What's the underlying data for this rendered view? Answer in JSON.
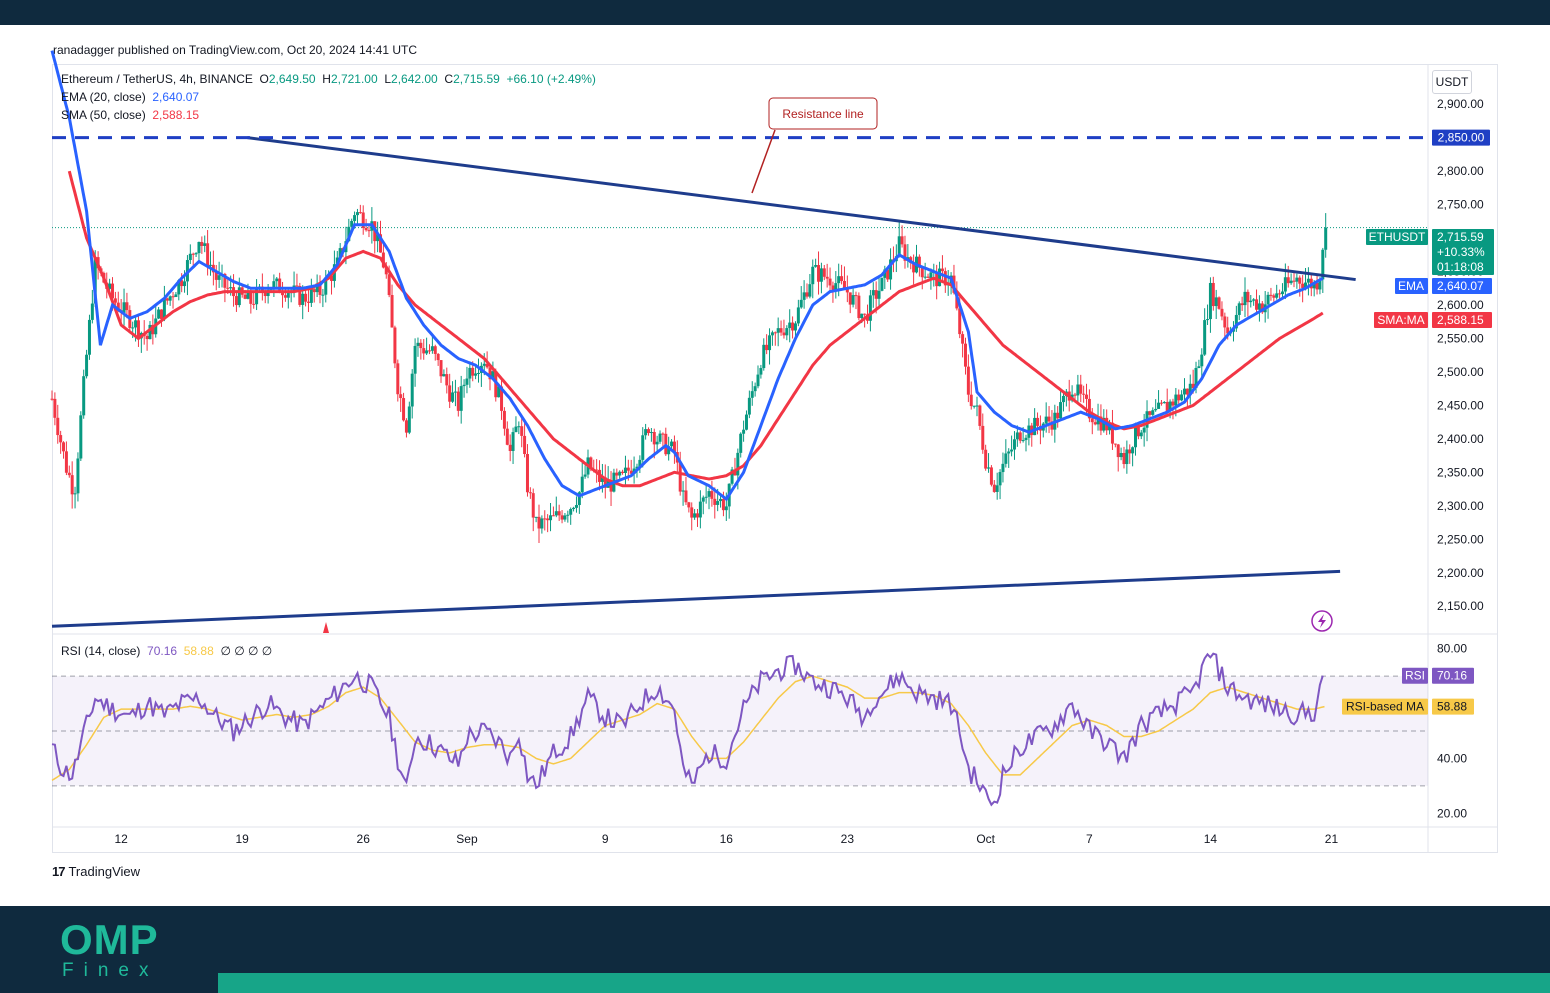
{
  "header": {
    "published_by": "ranadagger published on TradingView.com, Oct 20, 2024 14:41 UTC"
  },
  "symbol": {
    "name": "Ethereum / TetherUS, 4h, BINANCE",
    "open_label": "O",
    "open": "2,649.50",
    "high_label": "H",
    "high": "2,721.00",
    "low_label": "L",
    "low": "2,642.00",
    "close_label": "C",
    "close": "2,715.59",
    "change": "+66.10 (+2.49%)"
  },
  "indicators": {
    "ema_label": "EMA (20, close)",
    "ema_value": "2,640.07",
    "sma_label": "SMA (50, close)",
    "sma_value": "2,588.15",
    "rsi_label": "RSI (14, close)",
    "rsi_value": "70.16",
    "rsi_ma_value": "58.88",
    "rsi_extra": "∅ ∅ ∅ ∅"
  },
  "currency": "USDT",
  "annotation": "Resistance line",
  "price_tags": {
    "level": "2,850.00",
    "ticker": "ETHUSDT",
    "price": "2,715.59",
    "pct": "+10.33%",
    "countdown": "01:18:08",
    "ema_tag": "EMA",
    "ema": "2,640.07",
    "sma_tag": "SMA:MA",
    "sma": "2,588.15",
    "rsi_tag": "RSI",
    "rsi": "70.16",
    "rsi_ma_tag": "RSI-based MA",
    "rsi_ma": "58.88"
  },
  "branding": {
    "tradingview": "TradingView",
    "tv_mark": "17",
    "omp": "OMP",
    "finex": "Finex"
  },
  "colors": {
    "up": "#089981",
    "down": "#f23645",
    "ema": "#2962ff",
    "sma": "#f23645",
    "trendline": "#1e3c8c",
    "rsi": "#7e57c2",
    "rsi_ma": "#f7c948",
    "dark": "#0f2a3e",
    "teal": "#1fb99a"
  },
  "chart_data": {
    "type": "candlestick",
    "price_axis": {
      "ticks": [
        "2,150.00",
        "2,200.00",
        "2,250.00",
        "2,300.00",
        "2,350.00",
        "2,400.00",
        "2,450.00",
        "2,500.00",
        "2,550.00",
        "2,600.00",
        "2,650.00",
        "2,700.00",
        "2,750.00",
        "2,800.00",
        "2,850.00",
        "2,900.00"
      ],
      "range": [
        2110,
        2960
      ]
    },
    "rsi_axis": {
      "ticks": [
        "20.00",
        "40.00",
        "80.00"
      ],
      "range": [
        15,
        85
      ],
      "bands": [
        30,
        50,
        70
      ]
    },
    "time_axis": {
      "labels": [
        "12",
        "19",
        "26",
        "Sep",
        "9",
        "16",
        "23",
        "Oct",
        "7",
        "14",
        "21"
      ],
      "day_index": [
        8,
        15,
        22,
        28,
        36,
        43,
        50,
        58,
        64,
        71,
        78
      ]
    },
    "start_day": 4,
    "days": 75,
    "levels": {
      "horizontal_resistance": 2850,
      "last_price": 2715.59
    },
    "resistance_line": {
      "from": {
        "day": 15.3,
        "price": 2850
      },
      "to": {
        "day": 79.4,
        "price": 2638
      }
    },
    "support_line": {
      "from": {
        "day": 4,
        "price": 2120
      },
      "to": {
        "day": 78.5,
        "price": 2202
      }
    },
    "price_anchors": [
      [
        4,
        2460
      ],
      [
        4.8,
        2360
      ],
      [
        5.3,
        2320
      ],
      [
        5.8,
        2470
      ],
      [
        6.5,
        2660
      ],
      [
        7.5,
        2610
      ],
      [
        8.5,
        2580
      ],
      [
        9.5,
        2550
      ],
      [
        10.5,
        2600
      ],
      [
        11.5,
        2640
      ],
      [
        12.5,
        2700
      ],
      [
        13.5,
        2640
      ],
      [
        14.5,
        2615
      ],
      [
        15.5,
        2605
      ],
      [
        16.5,
        2630
      ],
      [
        17.5,
        2625
      ],
      [
        18.5,
        2610
      ],
      [
        19.5,
        2620
      ],
      [
        20.5,
        2660
      ],
      [
        21.5,
        2740
      ],
      [
        22.5,
        2720
      ],
      [
        23.3,
        2650
      ],
      [
        24,
        2480
      ],
      [
        24.5,
        2420
      ],
      [
        25,
        2540
      ],
      [
        26,
        2530
      ],
      [
        27,
        2470
      ],
      [
        27.5,
        2450
      ],
      [
        28,
        2500
      ],
      [
        29,
        2520
      ],
      [
        29.5,
        2490
      ],
      [
        30,
        2450
      ],
      [
        30.5,
        2380
      ],
      [
        31,
        2430
      ],
      [
        31.5,
        2330
      ],
      [
        32,
        2270
      ],
      [
        33,
        2280
      ],
      [
        34,
        2300
      ],
      [
        34.5,
        2320
      ],
      [
        35,
        2360
      ],
      [
        36,
        2330
      ],
      [
        37,
        2340
      ],
      [
        38,
        2380
      ],
      [
        38.5,
        2420
      ],
      [
        39,
        2400
      ],
      [
        40,
        2380
      ],
      [
        40.5,
        2310
      ],
      [
        41,
        2280
      ],
      [
        42,
        2320
      ],
      [
        43,
        2300
      ],
      [
        44,
        2420
      ],
      [
        45,
        2520
      ],
      [
        46,
        2560
      ],
      [
        47,
        2580
      ],
      [
        48,
        2650
      ],
      [
        49,
        2640
      ],
      [
        50,
        2620
      ],
      [
        51,
        2580
      ],
      [
        51.5,
        2610
      ],
      [
        52,
        2630
      ],
      [
        53,
        2690
      ],
      [
        53.5,
        2670
      ],
      [
        54,
        2660
      ],
      [
        55,
        2640
      ],
      [
        56,
        2640
      ],
      [
        56.5,
        2560
      ],
      [
        57,
        2470
      ],
      [
        57.5,
        2440
      ],
      [
        58,
        2370
      ],
      [
        58.5,
        2330
      ],
      [
        59,
        2360
      ],
      [
        60,
        2410
      ],
      [
        61,
        2420
      ],
      [
        62,
        2430
      ],
      [
        63,
        2480
      ],
      [
        64,
        2440
      ],
      [
        65,
        2420
      ],
      [
        66,
        2370
      ],
      [
        66.5,
        2400
      ],
      [
        67,
        2420
      ],
      [
        68,
        2440
      ],
      [
        69,
        2460
      ],
      [
        70,
        2480
      ],
      [
        70.5,
        2540
      ],
      [
        71,
        2620
      ],
      [
        71.5,
        2600
      ],
      [
        72,
        2560
      ],
      [
        73,
        2610
      ],
      [
        74,
        2600
      ],
      [
        75,
        2620
      ],
      [
        76,
        2640
      ],
      [
        77,
        2630
      ],
      [
        77.3,
        2640
      ],
      [
        77.6,
        2716
      ]
    ],
    "ema_anchors": [
      [
        4,
        2980
      ],
      [
        5,
        2880
      ],
      [
        6,
        2740
      ],
      [
        6.8,
        2540
      ],
      [
        7.5,
        2600
      ],
      [
        8.5,
        2580
      ],
      [
        9.5,
        2590
      ],
      [
        10.5,
        2610
      ],
      [
        11.5,
        2640
      ],
      [
        12.5,
        2665
      ],
      [
        13.5,
        2650
      ],
      [
        14.5,
        2635
      ],
      [
        15.5,
        2625
      ],
      [
        16.5,
        2625
      ],
      [
        17.5,
        2625
      ],
      [
        18.5,
        2625
      ],
      [
        19.5,
        2630
      ],
      [
        20.5,
        2660
      ],
      [
        21.5,
        2720
      ],
      [
        22.5,
        2720
      ],
      [
        23.5,
        2680
      ],
      [
        24.5,
        2610
      ],
      [
        25.5,
        2570
      ],
      [
        26.5,
        2540
      ],
      [
        27.5,
        2520
      ],
      [
        28.5,
        2510
      ],
      [
        29.5,
        2490
      ],
      [
        30.5,
        2460
      ],
      [
        31.5,
        2420
      ],
      [
        32.5,
        2370
      ],
      [
        33.5,
        2330
      ],
      [
        34.5,
        2315
      ],
      [
        35.5,
        2325
      ],
      [
        36.5,
        2335
      ],
      [
        37.5,
        2345
      ],
      [
        38.5,
        2370
      ],
      [
        39.5,
        2390
      ],
      [
        40,
        2380
      ],
      [
        40.8,
        2345
      ],
      [
        42,
        2330
      ],
      [
        43,
        2310
      ],
      [
        44,
        2350
      ],
      [
        45,
        2420
      ],
      [
        46,
        2490
      ],
      [
        47,
        2550
      ],
      [
        48,
        2600
      ],
      [
        49,
        2620
      ],
      [
        50,
        2625
      ],
      [
        51,
        2630
      ],
      [
        52,
        2645
      ],
      [
        53,
        2675
      ],
      [
        54,
        2660
      ],
      [
        55,
        2650
      ],
      [
        56,
        2640
      ],
      [
        57,
        2560
      ],
      [
        57.5,
        2470
      ],
      [
        58.5,
        2440
      ],
      [
        59.5,
        2420
      ],
      [
        60.5,
        2410
      ],
      [
        61.5,
        2420
      ],
      [
        62.5,
        2430
      ],
      [
        63.5,
        2440
      ],
      [
        64.5,
        2430
      ],
      [
        65.5,
        2415
      ],
      [
        66.5,
        2420
      ],
      [
        67.5,
        2430
      ],
      [
        68.5,
        2440
      ],
      [
        69.5,
        2455
      ],
      [
        70.5,
        2490
      ],
      [
        71.5,
        2540
      ],
      [
        72.5,
        2570
      ],
      [
        73.5,
        2585
      ],
      [
        74.5,
        2600
      ],
      [
        75.5,
        2615
      ],
      [
        76.5,
        2625
      ],
      [
        77.5,
        2640
      ]
    ],
    "sma_anchors": [
      [
        5,
        2800
      ],
      [
        6,
        2700
      ],
      [
        7,
        2640
      ],
      [
        8,
        2570
      ],
      [
        9,
        2550
      ],
      [
        10,
        2570
      ],
      [
        11,
        2590
      ],
      [
        12,
        2605
      ],
      [
        13,
        2615
      ],
      [
        14,
        2620
      ],
      [
        15,
        2620
      ],
      [
        16,
        2620
      ],
      [
        17,
        2620
      ],
      [
        18,
        2620
      ],
      [
        19,
        2625
      ],
      [
        20,
        2640
      ],
      [
        21,
        2670
      ],
      [
        22,
        2680
      ],
      [
        23,
        2670
      ],
      [
        24,
        2630
      ],
      [
        25,
        2600
      ],
      [
        26,
        2580
      ],
      [
        27,
        2560
      ],
      [
        28,
        2540
      ],
      [
        29,
        2520
      ],
      [
        30,
        2490
      ],
      [
        31,
        2460
      ],
      [
        32,
        2430
      ],
      [
        33,
        2400
      ],
      [
        34,
        2380
      ],
      [
        35,
        2360
      ],
      [
        36,
        2340
      ],
      [
        37,
        2330
      ],
      [
        38,
        2330
      ],
      [
        39,
        2340
      ],
      [
        40,
        2350
      ],
      [
        41,
        2345
      ],
      [
        42,
        2340
      ],
      [
        43,
        2345
      ],
      [
        44,
        2360
      ],
      [
        45,
        2390
      ],
      [
        46,
        2430
      ],
      [
        47,
        2470
      ],
      [
        48,
        2510
      ],
      [
        49,
        2540
      ],
      [
        50,
        2560
      ],
      [
        51,
        2580
      ],
      [
        52,
        2600
      ],
      [
        53,
        2620
      ],
      [
        54,
        2630
      ],
      [
        55,
        2640
      ],
      [
        56,
        2630
      ],
      [
        57,
        2600
      ],
      [
        58,
        2570
      ],
      [
        59,
        2540
      ],
      [
        60,
        2520
      ],
      [
        61,
        2500
      ],
      [
        62,
        2480
      ],
      [
        63,
        2460
      ],
      [
        64,
        2440
      ],
      [
        65,
        2425
      ],
      [
        66,
        2415
      ],
      [
        67,
        2420
      ],
      [
        68,
        2430
      ],
      [
        69,
        2440
      ],
      [
        70,
        2450
      ],
      [
        71,
        2470
      ],
      [
        72,
        2490
      ],
      [
        73,
        2510
      ],
      [
        74,
        2530
      ],
      [
        75,
        2550
      ],
      [
        76,
        2565
      ],
      [
        77,
        2580
      ],
      [
        77.5,
        2588
      ]
    ],
    "rsi_anchors": [
      [
        4,
        44
      ],
      [
        4.6,
        36
      ],
      [
        5.2,
        34
      ],
      [
        5.8,
        48
      ],
      [
        6.5,
        62
      ],
      [
        7.5,
        58
      ],
      [
        8.5,
        55
      ],
      [
        9.5,
        60
      ],
      [
        10.5,
        56
      ],
      [
        11.5,
        60
      ],
      [
        12.5,
        62
      ],
      [
        13.5,
        55
      ],
      [
        14.5,
        50
      ],
      [
        15.5,
        55
      ],
      [
        16.5,
        60
      ],
      [
        17.5,
        55
      ],
      [
        18.5,
        52
      ],
      [
        19.5,
        58
      ],
      [
        20.5,
        64
      ],
      [
        21.5,
        70
      ],
      [
        22.5,
        66
      ],
      [
        23.5,
        55
      ],
      [
        24,
        40
      ],
      [
        24.5,
        28
      ],
      [
        25,
        48
      ],
      [
        26,
        45
      ],
      [
        27,
        40
      ],
      [
        27.5,
        38
      ],
      [
        28,
        48
      ],
      [
        29,
        50
      ],
      [
        30,
        45
      ],
      [
        30.5,
        40
      ],
      [
        31,
        50
      ],
      [
        31.5,
        34
      ],
      [
        32,
        30
      ],
      [
        33,
        42
      ],
      [
        34,
        48
      ],
      [
        35,
        62
      ],
      [
        36,
        55
      ],
      [
        37,
        52
      ],
      [
        38,
        60
      ],
      [
        39,
        66
      ],
      [
        40,
        58
      ],
      [
        40.5,
        36
      ],
      [
        41,
        30
      ],
      [
        42,
        42
      ],
      [
        43,
        40
      ],
      [
        44,
        58
      ],
      [
        45,
        68
      ],
      [
        46,
        72
      ],
      [
        47,
        74
      ],
      [
        48,
        68
      ],
      [
        49,
        66
      ],
      [
        50,
        62
      ],
      [
        51,
        55
      ],
      [
        51.5,
        62
      ],
      [
        52,
        64
      ],
      [
        53,
        70
      ],
      [
        54,
        64
      ],
      [
        55,
        62
      ],
      [
        56,
        60
      ],
      [
        56.5,
        50
      ],
      [
        57,
        36
      ],
      [
        57.5,
        32
      ],
      [
        58,
        26
      ],
      [
        58.5,
        24
      ],
      [
        59,
        34
      ],
      [
        60,
        44
      ],
      [
        61,
        48
      ],
      [
        62,
        52
      ],
      [
        63,
        60
      ],
      [
        64,
        50
      ],
      [
        65,
        46
      ],
      [
        66,
        40
      ],
      [
        67,
        52
      ],
      [
        68,
        56
      ],
      [
        69,
        60
      ],
      [
        70,
        64
      ],
      [
        70.5,
        72
      ],
      [
        71,
        78
      ],
      [
        72,
        66
      ],
      [
        73,
        62
      ],
      [
        74,
        60
      ],
      [
        75,
        58
      ],
      [
        76,
        56
      ],
      [
        77,
        57
      ],
      [
        77.6,
        70.16
      ]
    ],
    "rsi_ma_anchors": [
      [
        4,
        32
      ],
      [
        5,
        36
      ],
      [
        6,
        45
      ],
      [
        7,
        55
      ],
      [
        8,
        58
      ],
      [
        9,
        58
      ],
      [
        10,
        58
      ],
      [
        11,
        58
      ],
      [
        12,
        59
      ],
      [
        13,
        58
      ],
      [
        14,
        56
      ],
      [
        15,
        54
      ],
      [
        16,
        55
      ],
      [
        17,
        56
      ],
      [
        18,
        55
      ],
      [
        19,
        56
      ],
      [
        20,
        59
      ],
      [
        21,
        64
      ],
      [
        22,
        66
      ],
      [
        23,
        62
      ],
      [
        24,
        54
      ],
      [
        25,
        46
      ],
      [
        26,
        43
      ],
      [
        27,
        42
      ],
      [
        28,
        44
      ],
      [
        29,
        45
      ],
      [
        30,
        45
      ],
      [
        31,
        44
      ],
      [
        32,
        40
      ],
      [
        33,
        38
      ],
      [
        34,
        40
      ],
      [
        35,
        46
      ],
      [
        36,
        52
      ],
      [
        37,
        54
      ],
      [
        38,
        56
      ],
      [
        39,
        60
      ],
      [
        40,
        58
      ],
      [
        41,
        48
      ],
      [
        42,
        40
      ],
      [
        43,
        40
      ],
      [
        44,
        46
      ],
      [
        45,
        54
      ],
      [
        46,
        62
      ],
      [
        47,
        68
      ],
      [
        48,
        70
      ],
      [
        49,
        68
      ],
      [
        50,
        66
      ],
      [
        51,
        62
      ],
      [
        52,
        62
      ],
      [
        53,
        64
      ],
      [
        54,
        64
      ],
      [
        55,
        63
      ],
      [
        56,
        60
      ],
      [
        57,
        52
      ],
      [
        58,
        42
      ],
      [
        59,
        34
      ],
      [
        60,
        34
      ],
      [
        61,
        40
      ],
      [
        62,
        46
      ],
      [
        63,
        52
      ],
      [
        64,
        54
      ],
      [
        65,
        52
      ],
      [
        66,
        48
      ],
      [
        67,
        48
      ],
      [
        68,
        50
      ],
      [
        69,
        54
      ],
      [
        70,
        58
      ],
      [
        71,
        64
      ],
      [
        72,
        66
      ],
      [
        73,
        64
      ],
      [
        74,
        62
      ],
      [
        75,
        60
      ],
      [
        76,
        58
      ],
      [
        77,
        58
      ],
      [
        77.6,
        58.88
      ]
    ]
  }
}
